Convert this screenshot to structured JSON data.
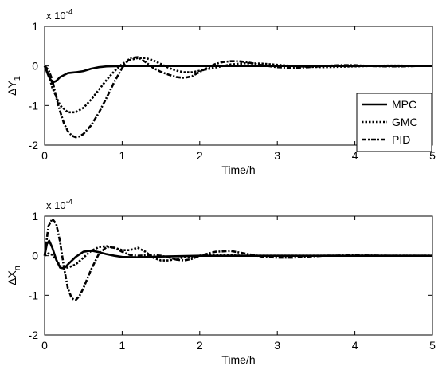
{
  "chart_data": [
    {
      "type": "line",
      "title": "",
      "xlabel": "Time/h",
      "ylabel": "ΔY",
      "ylabel_sub": "1",
      "scale_label": "x 10",
      "scale_exp": "-4",
      "xlim": [
        0,
        5
      ],
      "ylim": [
        -2,
        1
      ],
      "xticks": [
        0,
        1,
        2,
        3,
        4,
        5
      ],
      "yticks": [
        -2,
        -1,
        0,
        1
      ],
      "grid": false,
      "legend": {
        "placement": "right",
        "entries": [
          "MPC",
          "GMC",
          "PID"
        ]
      },
      "series": [
        {
          "name": "MPC",
          "style": "solid",
          "x": [
            0,
            0.05,
            0.1,
            0.15,
            0.2,
            0.3,
            0.4,
            0.5,
            0.6,
            0.7,
            0.8,
            1.0,
            1.2,
            1.5,
            2.0,
            3.0,
            4.0,
            5.0
          ],
          "y": [
            0,
            -0.25,
            -0.42,
            -0.38,
            -0.28,
            -0.18,
            -0.16,
            -0.13,
            -0.07,
            -0.03,
            -0.01,
            0.0,
            0.0,
            0.0,
            0.0,
            0.0,
            0.0,
            0.0
          ]
        },
        {
          "name": "GMC",
          "style": "dotted",
          "x": [
            0,
            0.05,
            0.1,
            0.2,
            0.3,
            0.4,
            0.5,
            0.6,
            0.7,
            0.8,
            0.9,
            1.0,
            1.1,
            1.2,
            1.3,
            1.4,
            1.5,
            1.6,
            1.7,
            1.8,
            1.9,
            2.0,
            2.2,
            2.4,
            2.6,
            2.8,
            3.0,
            3.2,
            3.4,
            3.6,
            3.8,
            4.0,
            4.2,
            4.4,
            4.6,
            4.8,
            5.0
          ],
          "y": [
            0,
            -0.2,
            -0.55,
            -1.0,
            -1.17,
            -1.17,
            -1.06,
            -0.85,
            -0.6,
            -0.35,
            -0.13,
            0.05,
            0.15,
            0.2,
            0.2,
            0.14,
            0.05,
            -0.05,
            -0.12,
            -0.16,
            -0.16,
            -0.12,
            -0.04,
            0.04,
            0.07,
            0.06,
            0.03,
            0.0,
            -0.02,
            -0.03,
            -0.02,
            -0.01,
            0.0,
            0.01,
            0.01,
            0.0,
            0.0
          ]
        },
        {
          "name": "PID",
          "style": "dash-dot",
          "x": [
            0,
            0.05,
            0.1,
            0.15,
            0.2,
            0.25,
            0.3,
            0.35,
            0.4,
            0.45,
            0.5,
            0.6,
            0.7,
            0.8,
            0.9,
            1.0,
            1.1,
            1.2,
            1.3,
            1.4,
            1.5,
            1.6,
            1.7,
            1.8,
            1.9,
            2.0,
            2.1,
            2.2,
            2.3,
            2.4,
            2.5,
            2.6,
            2.7,
            2.8,
            3.0,
            3.2,
            3.4,
            3.6,
            3.8,
            4.0,
            4.2,
            4.4,
            4.6,
            4.8,
            5.0
          ],
          "y": [
            0,
            -0.1,
            -0.35,
            -0.8,
            -1.15,
            -1.45,
            -1.65,
            -1.76,
            -1.8,
            -1.78,
            -1.72,
            -1.5,
            -1.18,
            -0.8,
            -0.4,
            -0.05,
            0.2,
            0.22,
            0.1,
            -0.05,
            -0.15,
            -0.22,
            -0.28,
            -0.3,
            -0.26,
            -0.15,
            -0.05,
            0.05,
            0.1,
            0.12,
            0.12,
            0.1,
            0.06,
            0.02,
            -0.03,
            -0.05,
            -0.03,
            0.0,
            0.02,
            0.02,
            0.0,
            -0.01,
            -0.01,
            0.0,
            0.0
          ]
        }
      ]
    },
    {
      "type": "line",
      "title": "",
      "xlabel": "Time/h",
      "ylabel": "ΔX",
      "ylabel_sub": "n",
      "scale_label": "x 10",
      "scale_exp": "-4",
      "xlim": [
        0,
        5
      ],
      "ylim": [
        -2,
        1
      ],
      "xticks": [
        0,
        1,
        2,
        3,
        4,
        5
      ],
      "yticks": [
        -2,
        -1,
        0,
        1
      ],
      "grid": false,
      "series": [
        {
          "name": "MPC",
          "style": "solid",
          "x": [
            0,
            0.03,
            0.06,
            0.1,
            0.15,
            0.2,
            0.25,
            0.3,
            0.4,
            0.5,
            0.6,
            0.7,
            0.8,
            0.9,
            1.0,
            1.2,
            1.5,
            2.0,
            3.0,
            4.0,
            5.0
          ],
          "y": [
            0,
            0.3,
            0.38,
            0.2,
            -0.1,
            -0.3,
            -0.32,
            -0.22,
            -0.03,
            0.1,
            0.13,
            0.09,
            0.04,
            0.0,
            -0.03,
            -0.04,
            -0.02,
            0.0,
            0.0,
            0.0,
            0.0
          ]
        },
        {
          "name": "GMC",
          "style": "dotted",
          "x": [
            0,
            0.05,
            0.1,
            0.15,
            0.2,
            0.3,
            0.4,
            0.5,
            0.6,
            0.7,
            0.8,
            0.9,
            1.0,
            1.1,
            1.2,
            1.3,
            1.4,
            1.5,
            1.6,
            1.7,
            1.8,
            2.0,
            2.2,
            2.4,
            2.6,
            3.0,
            3.5,
            4.0,
            5.0
          ],
          "y": [
            0,
            0.06,
            0.02,
            -0.1,
            -0.26,
            -0.3,
            -0.22,
            -0.05,
            0.12,
            0.22,
            0.24,
            0.2,
            0.14,
            0.14,
            0.2,
            0.1,
            -0.05,
            -0.12,
            -0.12,
            -0.08,
            -0.04,
            0.0,
            0.02,
            0.01,
            0.0,
            0.0,
            0.0,
            0.0,
            0.0
          ]
        },
        {
          "name": "PID",
          "style": "dash-dot",
          "x": [
            0,
            0.05,
            0.1,
            0.15,
            0.2,
            0.25,
            0.3,
            0.35,
            0.4,
            0.45,
            0.5,
            0.6,
            0.7,
            0.8,
            0.9,
            1.0,
            1.1,
            1.2,
            1.3,
            1.4,
            1.5,
            1.6,
            1.7,
            1.8,
            1.9,
            2.0,
            2.2,
            2.4,
            2.6,
            2.8,
            3.0,
            3.2,
            3.4,
            3.6,
            4.0,
            4.5,
            5.0
          ],
          "y": [
            0,
            0.75,
            0.93,
            0.8,
            0.35,
            -0.3,
            -0.82,
            -1.08,
            -1.12,
            -1.02,
            -0.82,
            -0.35,
            0.05,
            0.22,
            0.2,
            0.1,
            0.02,
            0.0,
            0.01,
            0.02,
            0.0,
            -0.04,
            -0.1,
            -0.12,
            -0.08,
            0.0,
            0.1,
            0.12,
            0.05,
            -0.02,
            -0.05,
            -0.05,
            -0.02,
            0.0,
            0.01,
            0.0,
            0.0
          ]
        }
      ]
    }
  ]
}
